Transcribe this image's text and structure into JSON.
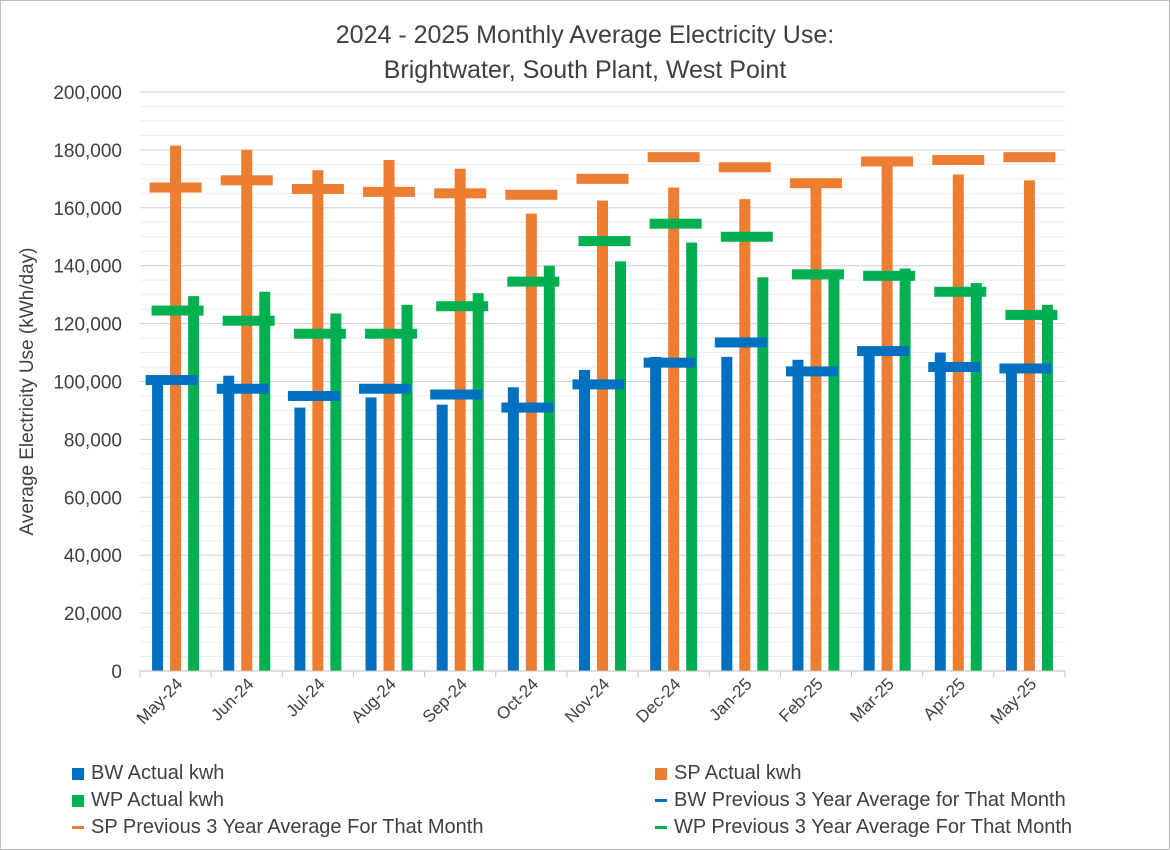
{
  "chart_data": {
    "type": "bar",
    "title_line1": "2024 - 2025 Monthly Average Electricity Use:",
    "title_line2": "Brightwater, South Plant, West Point",
    "ylabel": "Average Electricity Use (kWh/day)",
    "xlabel": "",
    "ylim": [
      0,
      200000
    ],
    "yticks": [
      0,
      20000,
      40000,
      60000,
      80000,
      100000,
      120000,
      140000,
      160000,
      180000,
      200000
    ],
    "ytick_labels": [
      "0",
      "20,000",
      "40,000",
      "60,000",
      "80,000",
      "100,000",
      "120,000",
      "140,000",
      "160,000",
      "180,000",
      "200,000"
    ],
    "gridlines": true,
    "legend_position": "bottom",
    "categories": [
      "May-24",
      "Jun-24",
      "Jul-24",
      "Aug-24",
      "Sep-24",
      "Oct-24",
      "Nov-24",
      "Dec-24",
      "Jan-25",
      "Feb-25",
      "Mar-25",
      "Apr-25",
      "May-25"
    ],
    "series": [
      {
        "name": "BW Actual kwh",
        "kind": "bar",
        "color": "#0070c0",
        "values": [
          101000,
          102000,
          91000,
          94500,
          92000,
          98000,
          104000,
          108500,
          108500,
          107500,
          110000,
          110000,
          105000
        ]
      },
      {
        "name": "SP Actual kwh",
        "kind": "bar",
        "color": "#ed7d31",
        "values": [
          181500,
          180000,
          173000,
          176500,
          173500,
          158000,
          162500,
          167000,
          163000,
          168000,
          176500,
          171500,
          169500
        ]
      },
      {
        "name": "WP Actual kwh",
        "kind": "bar",
        "color": "#00b050",
        "values": [
          129500,
          131000,
          123500,
          126500,
          130500,
          140000,
          141500,
          148000,
          136000,
          137000,
          139000,
          134000,
          126500
        ]
      },
      {
        "name": "BW Previous 3 Year Average for That Month",
        "kind": "marker",
        "color": "#0070c0",
        "values": [
          100500,
          97500,
          95000,
          97500,
          95500,
          91000,
          99000,
          106500,
          113500,
          103500,
          110500,
          105000,
          104500
        ]
      },
      {
        "name": "SP Previous 3 Year Average For That Month",
        "kind": "marker",
        "color": "#ed7d31",
        "values": [
          167000,
          169500,
          166500,
          165500,
          165000,
          164500,
          170000,
          177500,
          174000,
          168500,
          176000,
          176500,
          177500
        ]
      },
      {
        "name": "WP Previous 3 Year Average For That Month",
        "kind": "marker",
        "color": "#00b050",
        "values": [
          124500,
          121000,
          116500,
          116500,
          126000,
          134500,
          148500,
          154500,
          150000,
          137000,
          136500,
          131000,
          123000
        ]
      }
    ]
  }
}
